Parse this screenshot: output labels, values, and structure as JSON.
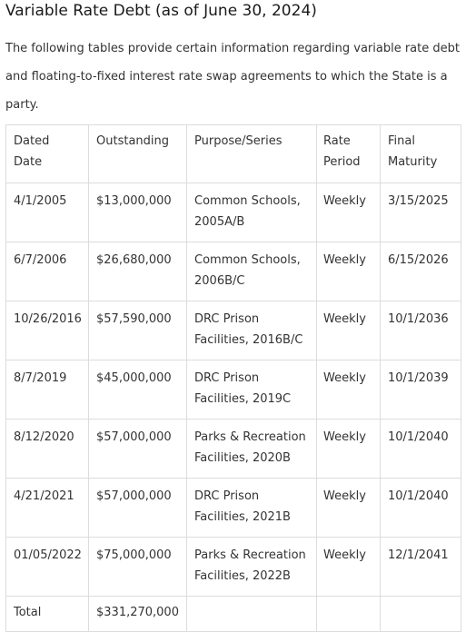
{
  "page": {
    "title": "Variable Rate Debt (as of June 30, 2024)",
    "intro": "The following tables provide certain information regarding variable rate debt and floating-to-fixed interest rate swap agreements to which the State is a party."
  },
  "table": {
    "headers": {
      "dated_date": "Dated Date",
      "outstanding": "Outstanding",
      "purpose_series": "Purpose/Series",
      "rate_period": "Rate Period",
      "final_maturity": "Final Maturity"
    },
    "rows": [
      {
        "dated_date": "4/1/2005",
        "outstanding": "$13,000,000",
        "purpose_series": "Common Schools, 2005A/B",
        "rate_period": "Weekly",
        "final_maturity": "3/15/2025"
      },
      {
        "dated_date": "6/7/2006",
        "outstanding": "$26,680,000",
        "purpose_series": "Common Schools, 2006B/C",
        "rate_period": "Weekly",
        "final_maturity": "6/15/2026"
      },
      {
        "dated_date": "10/26/2016",
        "outstanding": "$57,590,000",
        "purpose_series": "DRC Prison Facilities, 2016B/C",
        "rate_period": "Weekly",
        "final_maturity": "10/1/2036"
      },
      {
        "dated_date": "8/7/2019",
        "outstanding": "$45,000,000",
        "purpose_series": "DRC Prison Facilities, 2019C",
        "rate_period": "Weekly",
        "final_maturity": "10/1/2039"
      },
      {
        "dated_date": "8/12/2020",
        "outstanding": "$57,000,000",
        "purpose_series": "Parks & Recreation Facilities, 2020B",
        "rate_period": "Weekly",
        "final_maturity": "10/1/2040"
      },
      {
        "dated_date": "4/21/2021",
        "outstanding": "$57,000,000",
        "purpose_series": "DRC Prison Facilities, 2021B",
        "rate_period": "Weekly",
        "final_maturity": "10/1/2040"
      },
      {
        "dated_date": "01/05/2022",
        "outstanding": "$75,000,000",
        "purpose_series": "Parks & Recreation Facilities, 2022B",
        "rate_period": "Weekly",
        "final_maturity": "12/1/2041"
      }
    ],
    "total": {
      "label": "Total",
      "outstanding": "$331,270,000"
    }
  }
}
